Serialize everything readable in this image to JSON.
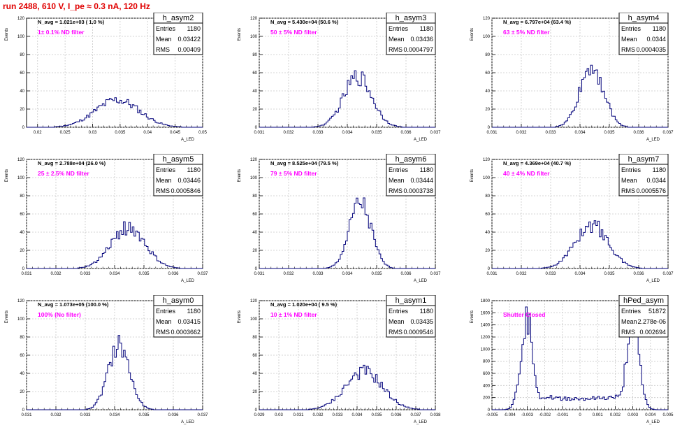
{
  "run_title": "run 2488,   610 V, I_pe ≈ 0.3 nA, 120 Hz",
  "stats_labels": {
    "entries": "Entries",
    "mean": "Mean",
    "rms": "RMS"
  },
  "chart_data": [
    {
      "type": "bar",
      "name": "h_asym2",
      "navg": "N_avg = 1.021e+03 ( 1.0 %)",
      "annotation": "1± 0.1% ND filter",
      "annotation_color": "#ff00ff",
      "entries": "1180",
      "mean": "0.03422",
      "rms": "0.00409",
      "xlabel": "A_LED",
      "ylabel": "Events",
      "xlim": [
        0.018,
        0.05
      ],
      "ylim": [
        0,
        120
      ],
      "xticks": [
        0.02,
        0.025,
        0.03,
        0.035,
        0.04,
        0.045,
        0.05
      ],
      "xticklabels": [
        "0.02",
        "0.025",
        "0.03",
        "0.035",
        "0.04",
        "0.045",
        "0.05"
      ],
      "yticks": [
        0,
        20,
        40,
        60,
        80,
        100,
        120
      ],
      "shape": {
        "kind": "gauss",
        "mu": 0.0345,
        "sigma": 0.004,
        "peak": 30
      }
    },
    {
      "type": "bar",
      "name": "h_asym3",
      "navg": "N_avg = 5.430e+04 (50.6 %)",
      "annotation": "50 ± 5% ND filter",
      "annotation_color": "#ff00ff",
      "entries": "1180",
      "mean": "0.03436",
      "rms": "0.0004797",
      "xlabel": "A_LED",
      "ylabel": "Events",
      "xlim": [
        0.031,
        0.037
      ],
      "ylim": [
        0,
        120
      ],
      "xticks": [
        0.031,
        0.032,
        0.033,
        0.034,
        0.035,
        0.036,
        0.037
      ],
      "xticklabels": [
        "0.031",
        "0.032",
        "0.033",
        "0.034",
        "0.035",
        "0.036",
        "0.037"
      ],
      "yticks": [
        0,
        20,
        40,
        60,
        80,
        100,
        120
      ],
      "shape": {
        "kind": "gauss",
        "mu": 0.03436,
        "sigma": 0.00048,
        "peak": 56
      }
    },
    {
      "type": "bar",
      "name": "h_asym4",
      "navg": "N_avg = 6.797e+04 (63.4 %)",
      "annotation": "63 ± 5% ND filter",
      "annotation_color": "#ff00ff",
      "entries": "1180",
      "mean": "0.0344",
      "rms": "0.0004035",
      "xlabel": "A_LED",
      "ylabel": "Events",
      "xlim": [
        0.031,
        0.037
      ],
      "ylim": [
        0,
        120
      ],
      "xticks": [
        0.031,
        0.032,
        0.033,
        0.034,
        0.035,
        0.036,
        0.037
      ],
      "xticklabels": [
        "0.031",
        "0.032",
        "0.033",
        "0.034",
        "0.035",
        "0.036",
        "0.037"
      ],
      "yticks": [
        0,
        20,
        40,
        60,
        80,
        100,
        120
      ],
      "shape": {
        "kind": "gauss",
        "mu": 0.0344,
        "sigma": 0.0004,
        "peak": 68
      }
    },
    {
      "type": "bar",
      "name": "h_asym5",
      "navg": "N_avg = 2.788e+04 (26.0 %)",
      "annotation": "25 ± 2.5% ND filter",
      "annotation_color": "#ff00ff",
      "entries": "1180",
      "mean": "0.03446",
      "rms": "0.0005846",
      "xlabel": "A_LED",
      "ylabel": "Events",
      "xlim": [
        0.031,
        0.037
      ],
      "ylim": [
        0,
        120
      ],
      "xticks": [
        0.031,
        0.032,
        0.033,
        0.034,
        0.035,
        0.036,
        0.037
      ],
      "xticklabels": [
        "0.031",
        "0.032",
        "0.033",
        "0.034",
        "0.035",
        "0.036",
        "0.037"
      ],
      "yticks": [
        0,
        20,
        40,
        60,
        80,
        100,
        120
      ],
      "shape": {
        "kind": "gauss",
        "mu": 0.03446,
        "sigma": 0.00058,
        "peak": 45
      }
    },
    {
      "type": "bar",
      "name": "h_asym6",
      "navg": "N_avg = 8.525e+04 (79.5 %)",
      "annotation": "79 ± 5% ND filter",
      "annotation_color": "#ff00ff",
      "entries": "1180",
      "mean": "0.03444",
      "rms": "0.0003738",
      "xlabel": "A_LED",
      "ylabel": "Events",
      "xlim": [
        0.031,
        0.037
      ],
      "ylim": [
        0,
        120
      ],
      "xticks": [
        0.031,
        0.032,
        0.033,
        0.034,
        0.035,
        0.036,
        0.037
      ],
      "xticklabels": [
        "0.031",
        "0.032",
        "0.033",
        "0.034",
        "0.035",
        "0.036",
        "0.037"
      ],
      "yticks": [
        0,
        20,
        40,
        60,
        80,
        100,
        120
      ],
      "shape": {
        "kind": "gauss",
        "mu": 0.03444,
        "sigma": 0.00037,
        "peak": 72
      }
    },
    {
      "type": "bar",
      "name": "h_asym7",
      "navg": "N_avg = 4.369e+04 (40.7 %)",
      "annotation": "40 ± 4% ND filter",
      "annotation_color": "#ff00ff",
      "entries": "1180",
      "mean": "0.0344",
      "rms": "0.0005576",
      "xlabel": "A_LED",
      "ylabel": "Events",
      "xlim": [
        0.031,
        0.037
      ],
      "ylim": [
        0,
        120
      ],
      "xticks": [
        0.031,
        0.032,
        0.033,
        0.034,
        0.035,
        0.036,
        0.037
      ],
      "xticklabels": [
        "0.031",
        "0.032",
        "0.033",
        "0.034",
        "0.035",
        "0.036",
        "0.037"
      ],
      "yticks": [
        0,
        20,
        40,
        60,
        80,
        100,
        120
      ],
      "shape": {
        "kind": "gauss",
        "mu": 0.0344,
        "sigma": 0.00056,
        "peak": 48
      }
    },
    {
      "type": "bar",
      "name": "h_asym0",
      "navg": "N_avg = 1.073e+05 (100.0 %)",
      "annotation": "100% (No filter)",
      "annotation_color": "#ff00ff",
      "entries": "1180",
      "mean": "0.03415",
      "rms": "0.0003662",
      "xlabel": "A_LED",
      "ylabel": "Events",
      "xlim": [
        0.031,
        0.037
      ],
      "ylim": [
        0,
        120
      ],
      "xticks": [
        0.031,
        0.032,
        0.033,
        0.034,
        0.035,
        0.036,
        0.037
      ],
      "xticklabels": [
        "0.031",
        "0.032",
        "0.033",
        "0.034",
        "0.035",
        "0.036",
        "0.037"
      ],
      "yticks": [
        0,
        20,
        40,
        60,
        80,
        100,
        120
      ],
      "shape": {
        "kind": "gauss",
        "mu": 0.03415,
        "sigma": 0.00036,
        "peak": 72
      }
    },
    {
      "type": "bar",
      "name": "h_asym1",
      "navg": "N_avg = 1.020e+04 ( 9.5 %)",
      "annotation": "10 ± 1% ND filter",
      "annotation_color": "#ff00ff",
      "entries": "1180",
      "mean": "0.03435",
      "rms": "0.0009546",
      "xlabel": "A_LED",
      "ylabel": "Events",
      "xlim": [
        0.029,
        0.038
      ],
      "ylim": [
        0,
        120
      ],
      "xticks": [
        0.029,
        0.03,
        0.031,
        0.032,
        0.033,
        0.034,
        0.035,
        0.036,
        0.037,
        0.038
      ],
      "xticklabels": [
        "0.029",
        "0.03",
        "0.031",
        "0.032",
        "0.033",
        "0.034",
        "0.035",
        "0.036",
        "0.037",
        "0.038"
      ],
      "yticks": [
        0,
        20,
        40,
        60,
        80,
        100,
        120
      ],
      "shape": {
        "kind": "gauss",
        "mu": 0.03435,
        "sigma": 0.00095,
        "peak": 42
      }
    },
    {
      "type": "bar",
      "name": "hPed_asym",
      "navg": "",
      "annotation": "Shutter Closed",
      "annotation_color": "#ff00ff",
      "entries": "51872",
      "mean": "2.278e-06",
      "rms": "0.002694",
      "xlabel": "A_LED",
      "ylabel": "Events",
      "xlim": [
        -0.005,
        0.005
      ],
      "ylim": [
        0,
        1800
      ],
      "xticks": [
        -0.005,
        -0.004,
        -0.003,
        -0.002,
        -0.001,
        0,
        0.001,
        0.002,
        0.003,
        0.004,
        0.005
      ],
      "xticklabels": [
        "-0.005",
        "-0.004",
        "-0.003",
        "-0.002",
        "-0.001",
        "0",
        "0.001",
        "0.002",
        "0.003",
        "0.004",
        "0.005"
      ],
      "yticks": [
        0,
        200,
        400,
        600,
        800,
        1000,
        1200,
        1400,
        1600,
        1800
      ],
      "shape": {
        "kind": "bimodal",
        "mu1": -0.003,
        "mu2": 0.003,
        "sigma": 0.00035,
        "peak": 1500,
        "base": 200
      }
    }
  ]
}
